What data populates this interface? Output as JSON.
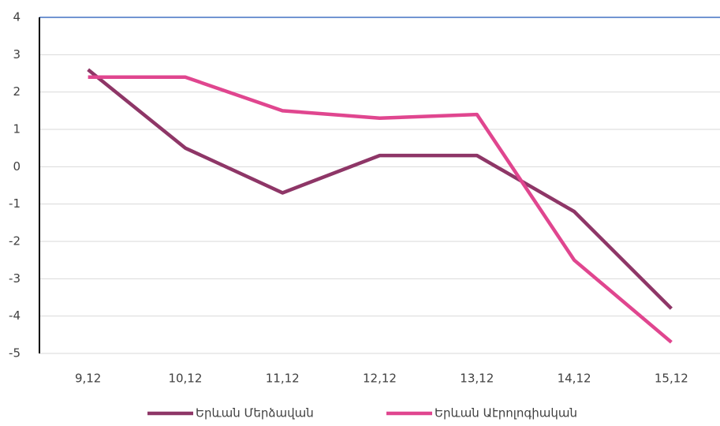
{
  "chart_data": {
    "type": "line",
    "categories": [
      "9,12",
      "10,12",
      "11,12",
      "12,12",
      "13,12",
      "14,12",
      "15,12"
    ],
    "series": [
      {
        "name": "Երևան Մերձավան",
        "color": "#8e3667",
        "values": [
          2.6,
          0.5,
          -0.7,
          0.3,
          0.3,
          -1.2,
          -3.8
        ]
      },
      {
        "name": "Երևան Աէրոլոգիական",
        "color": "#e0468f",
        "values": [
          2.4,
          2.4,
          1.5,
          1.3,
          1.4,
          -2.5,
          -4.7
        ]
      }
    ],
    "ylim": [
      -5,
      4
    ],
    "yticks": [
      -5,
      -4,
      -3,
      -2,
      -1,
      0,
      1,
      2,
      3,
      4
    ],
    "grid": true,
    "legend": "bottom"
  }
}
